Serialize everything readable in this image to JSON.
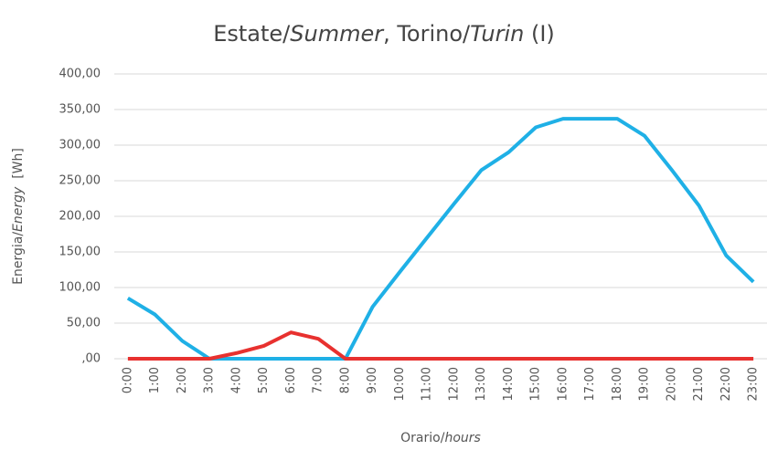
{
  "chart_data": {
    "type": "line",
    "title": [
      "Estate/",
      "Summer",
      ", Torino/",
      "Turin",
      " (I)"
    ],
    "ylabel": [
      "Energia/",
      "Energy",
      "  [Wh]"
    ],
    "xlabel": [
      "Orario/",
      "hours"
    ],
    "categories": [
      "0:00",
      "1:00",
      "2:00",
      "3:00",
      "4:00",
      "5:00",
      "6:00",
      "7:00",
      "8:00",
      "9:00",
      "10:00",
      "11:00",
      "12:00",
      "13:00",
      "14:00",
      "15:00",
      "16:00",
      "17:00",
      "18:00",
      "19:00",
      "20:00",
      "21:00",
      "22:00",
      "23:00"
    ],
    "series": [
      {
        "color": "#1fb0e6",
        "values": [
          85,
          62,
          25,
          0,
          0,
          0,
          0,
          0,
          0,
          73,
          122,
          170,
          218,
          265,
          290,
          325,
          337,
          337,
          337,
          313,
          265,
          215,
          145,
          108
        ]
      },
      {
        "color": "#e8312f",
        "values": [
          0,
          0,
          0,
          0,
          8,
          18,
          37,
          28,
          0,
          0,
          0,
          0,
          0,
          0,
          0,
          0,
          0,
          0,
          0,
          0,
          0,
          0,
          0,
          0
        ]
      }
    ],
    "ylim": [
      0,
      400
    ],
    "yticks": [
      {
        "value": 0,
        "label": ",00"
      },
      {
        "value": 50,
        "label": "50,00"
      },
      {
        "value": 100,
        "label": "100,00"
      },
      {
        "value": 150,
        "label": "150,00"
      },
      {
        "value": 200,
        "label": "200,00"
      },
      {
        "value": 250,
        "label": "250,00"
      },
      {
        "value": 300,
        "label": "300,00"
      },
      {
        "value": 350,
        "label": "350,00"
      },
      {
        "value": 400,
        "label": "400,00"
      }
    ],
    "grid": true
  }
}
